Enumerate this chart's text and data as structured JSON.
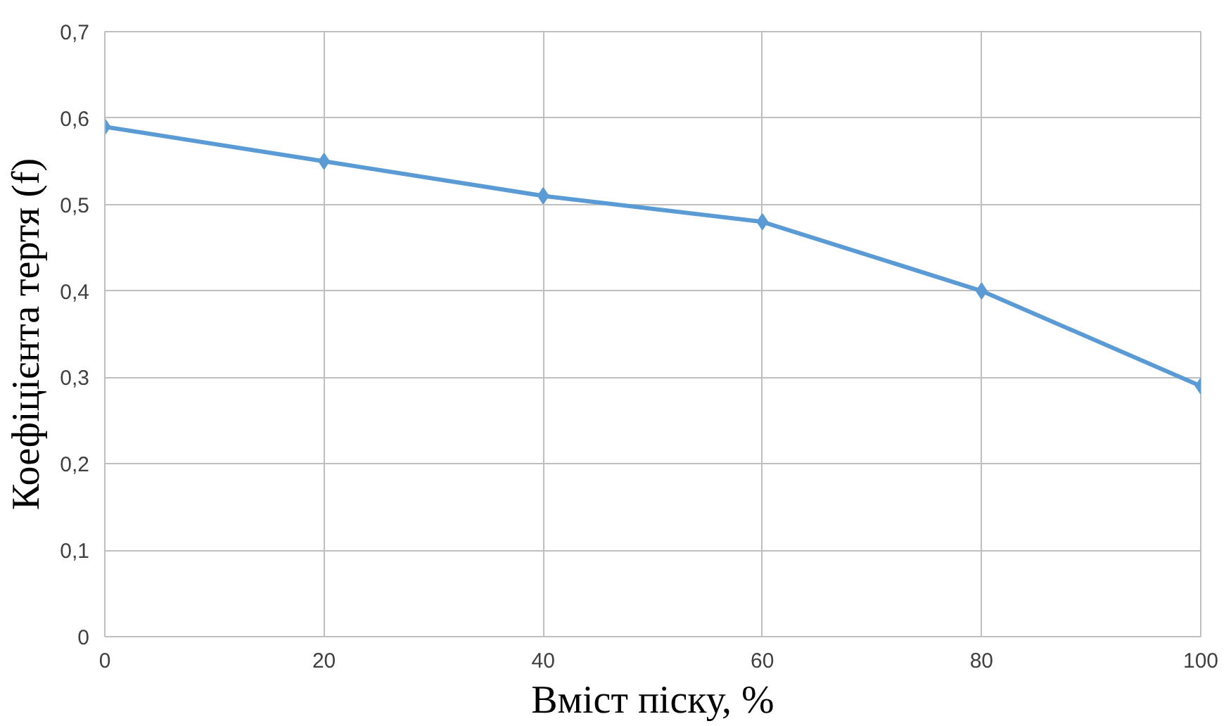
{
  "chart_data": {
    "type": "line",
    "xlabel": "Вміст піску, %",
    "ylabel": "Коефіцієнта тертя (f)",
    "x": [
      0,
      20,
      40,
      60,
      80,
      100
    ],
    "series": [
      {
        "color": "#5b9bd5",
        "values": [
          0.59,
          0.55,
          0.51,
          0.48,
          0.4,
          0.29
        ]
      }
    ],
    "xlim": [
      0,
      100
    ],
    "xticks": [
      0,
      20,
      40,
      60,
      80,
      100
    ],
    "ylim": [
      0,
      0.7
    ],
    "yticks": [
      0,
      {
        "value": 0.1,
        "label": "0,1"
      },
      {
        "value": 0.2,
        "label": "0,2"
      },
      {
        "value": 0.3,
        "label": "0,3"
      },
      {
        "value": 0.4,
        "label": "0,4"
      },
      {
        "value": 0.5,
        "label": "0,5"
      },
      {
        "value": 0.6,
        "label": "0,6"
      },
      {
        "value": 0.7,
        "label": "0,7"
      }
    ],
    "grid": true,
    "marker": "diamond",
    "line_style": "solid"
  }
}
